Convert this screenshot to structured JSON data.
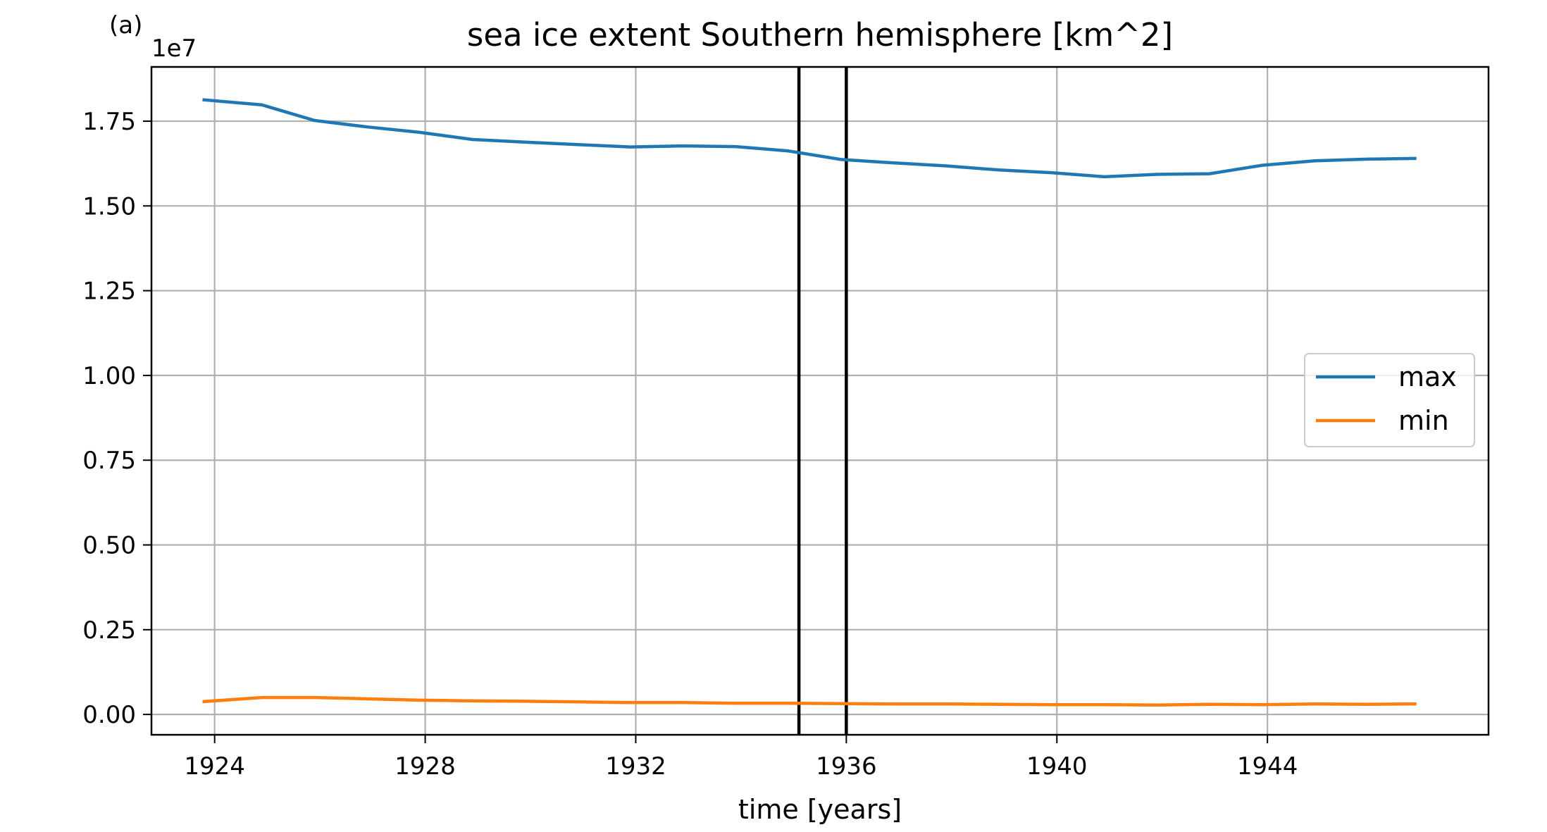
{
  "panel_label": "(a)",
  "chart_data": {
    "type": "line",
    "title": "sea ice extent Southern hemisphere [km^2]",
    "xlabel": "time [years]",
    "ylabel": "",
    "y_offset_label": "1e7",
    "y_scale_factor": 10000000,
    "xlim": [
      1922.8,
      1948.2
    ],
    "ylim": [
      -0.06,
      1.91
    ],
    "xticks": [
      1924,
      1928,
      1932,
      1936,
      1940,
      1944
    ],
    "xtick_labels": [
      "1924",
      "1928",
      "1932",
      "1936",
      "1940",
      "1944"
    ],
    "yticks": [
      0,
      0.25,
      0.5,
      0.75,
      1.0,
      1.25,
      1.5,
      1.75
    ],
    "ytick_labels": [
      "0.00",
      "0.25",
      "0.50",
      "0.75",
      "1.00",
      "1.25",
      "1.50",
      "1.75"
    ],
    "grid": true,
    "legend_position": "center-right",
    "vlines": [
      1935.1,
      1936.0
    ],
    "x": [
      1923.8,
      1924.9,
      1925.9,
      1926.9,
      1927.9,
      1928.9,
      1929.9,
      1930.9,
      1931.9,
      1932.9,
      1933.9,
      1934.9,
      1935.9,
      1936.9,
      1937.9,
      1938.9,
      1939.9,
      1940.9,
      1941.9,
      1942.9,
      1943.9,
      1944.9,
      1945.9,
      1946.8
    ],
    "series": [
      {
        "name": "max",
        "color": "#1f77b4",
        "values": [
          1.813,
          1.798,
          1.752,
          1.733,
          1.717,
          1.696,
          1.688,
          1.681,
          1.674,
          1.677,
          1.675,
          1.662,
          1.637,
          1.627,
          1.618,
          1.606,
          1.598,
          1.586,
          1.593,
          1.595,
          1.62,
          1.633,
          1.638,
          1.64
        ]
      },
      {
        "name": "min",
        "color": "#ff7f0e",
        "values": [
          0.038,
          0.05,
          0.05,
          0.046,
          0.042,
          0.04,
          0.039,
          0.037,
          0.035,
          0.035,
          0.033,
          0.033,
          0.032,
          0.031,
          0.031,
          0.03,
          0.029,
          0.029,
          0.028,
          0.03,
          0.029,
          0.031,
          0.03,
          0.031
        ]
      }
    ]
  }
}
